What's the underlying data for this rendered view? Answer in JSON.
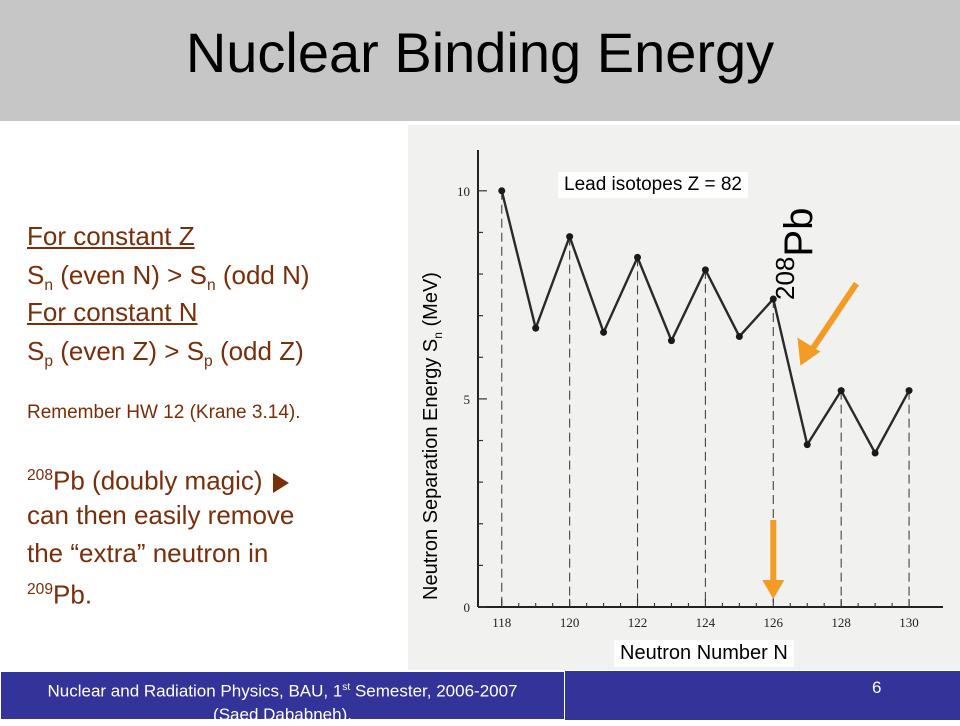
{
  "slide": {
    "title": "Nuclear Binding Energy",
    "page_number": "6"
  },
  "left": {
    "line1": "For constant Z",
    "line2_a": "S",
    "line2_sub1": "n",
    "line2_b": " (even N) > S",
    "line2_sub2": "n",
    "line2_c": " (odd N)",
    "line3": "For constant N",
    "line4_a": "S",
    "line4_sub1": "p",
    "line4_b": " (even Z) > S",
    "line4_sub2": "p",
    "line4_c": " (odd Z)",
    "remember": "Remember HW 12 (Krane 3.14).",
    "pb208_sup": "208",
    "pb208_text": "Pb (doubly magic)",
    "line_b": "can then easily remove",
    "line_c": "the “extra” neutron in",
    "pb209_sup": "209",
    "pb209_text": "Pb."
  },
  "chart_labels": {
    "series_label": "Lead isotopes Z = 82",
    "x_label": "Neutron Number N",
    "y_label_a": "Neutron Separation Energy S",
    "y_label_sub": "n",
    "y_label_b": " (MeV)",
    "pb_sup": "208",
    "pb_elem": "Pb"
  },
  "chart_data": {
    "type": "line",
    "x": [
      118,
      119,
      120,
      121,
      122,
      123,
      124,
      125,
      126,
      127,
      128,
      129,
      130
    ],
    "y": [
      10.0,
      6.7,
      8.9,
      6.6,
      8.4,
      6.4,
      8.1,
      6.5,
      7.4,
      3.9,
      5.2,
      3.7,
      5.2
    ],
    "x_ticks": [
      "118",
      "120",
      "122",
      "124",
      "126",
      "128",
      "130"
    ],
    "y_ticks": [
      "10",
      "5",
      "0"
    ],
    "xlim": [
      117.3,
      131
    ],
    "ylim": [
      0,
      10.5
    ],
    "dashed_gridlines_at_data_points": true,
    "annotation_color": "#f59a23"
  },
  "footer": {
    "line1_a": "Nuclear and Radiation Physics, BAU, 1",
    "line1_sup": "st",
    "line1_b": " Semester, 2006-2007",
    "line2": "(Saed Dababneh)."
  }
}
